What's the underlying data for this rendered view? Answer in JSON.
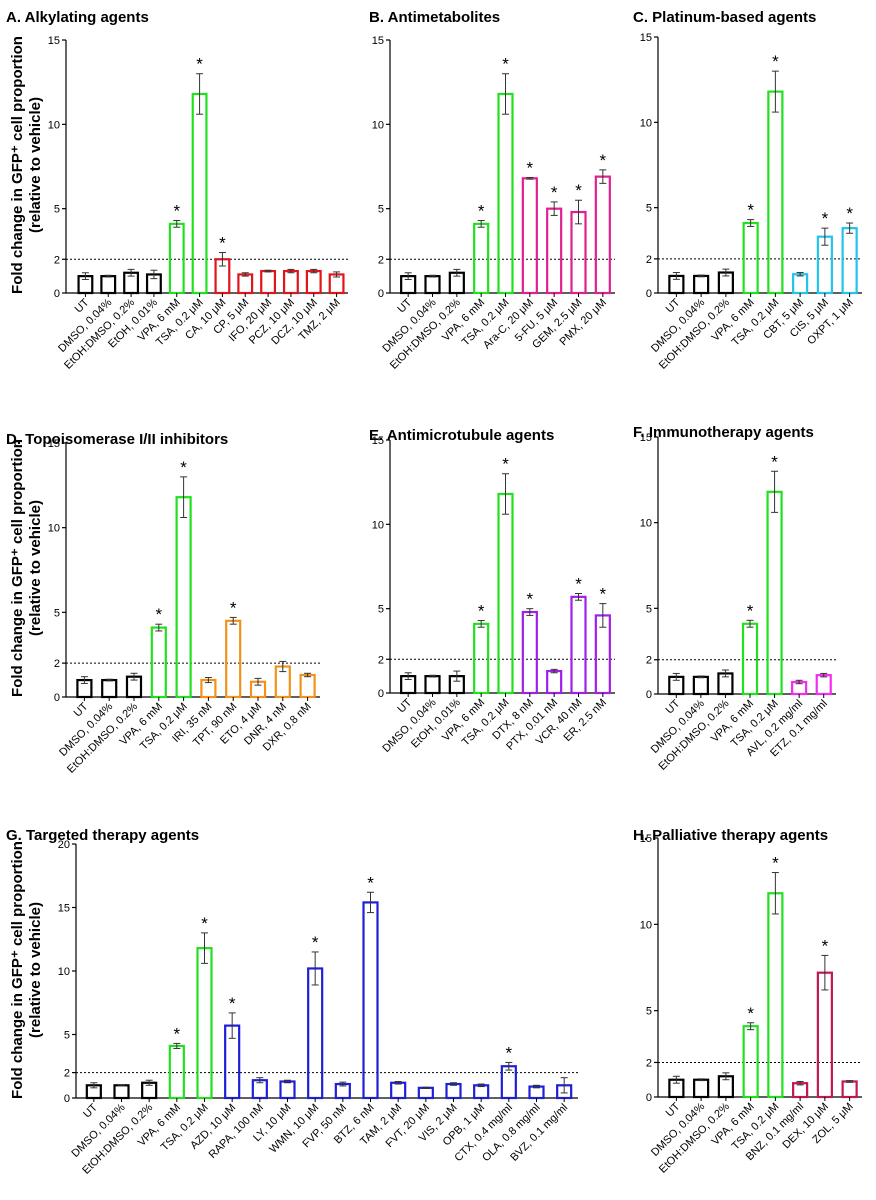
{
  "colors": {
    "black": "#000000",
    "green": "#22e020",
    "red": "#e0141b",
    "magenta": "#e0208f",
    "cyan": "#22c4ec",
    "orange": "#f2921c",
    "purple": "#a020e8",
    "pink": "#f22cf0",
    "blue": "#1f1fd6",
    "maroon": "#c01852"
  },
  "y_axis_label_line1": "Fold change in GFP⁺ cell proportion",
  "y_axis_label_line2": "(relative to vehicle)",
  "chart_data": [
    {
      "id": "A",
      "type": "bar",
      "title": "A. Alkylating agents",
      "ylim": [
        0,
        15
      ],
      "yticks": [
        0,
        2,
        5,
        10,
        15
      ],
      "reference_line": 2,
      "categories": [
        "UT",
        "DMSO, 0.04%",
        "EtOH:DMSO, 0.2%",
        "EtOH, 0.01%",
        "VPA, 6 mM",
        "TSA, 0.2 μM",
        "CA, 10 μM",
        "CP, 5 μM",
        "IFO, 20 μM",
        "PCZ, 10 μM",
        "DCZ, 10 μM",
        "TMZ, 2 μM"
      ],
      "values": [
        1.0,
        1.0,
        1.2,
        1.1,
        4.1,
        11.8,
        2.0,
        1.1,
        1.3,
        1.3,
        1.3,
        1.1
      ],
      "errors": [
        0.2,
        0.05,
        0.2,
        0.25,
        0.2,
        1.2,
        0.4,
        0.1,
        0.05,
        0.1,
        0.1,
        0.15
      ],
      "significant": [
        false,
        false,
        false,
        false,
        true,
        true,
        true,
        false,
        false,
        false,
        false,
        false
      ],
      "colors": [
        "black",
        "black",
        "black",
        "black",
        "green",
        "green",
        "red",
        "red",
        "red",
        "red",
        "red",
        "red"
      ]
    },
    {
      "id": "B",
      "type": "bar",
      "title": "B. Antimetabolites",
      "ylim": [
        0,
        15
      ],
      "yticks": [
        0,
        2,
        5,
        10,
        15
      ],
      "reference_line": 2,
      "categories": [
        "UT",
        "DMSO, 0.04%",
        "EtOH:DMSO, 0.2%",
        "VPA, 6 mM",
        "TSA, 0.2 μM",
        "Ara-C, 20 μM",
        "5-FU, 5 μM",
        "GEM, 2.5 μM",
        "PMX, 20 μM"
      ],
      "values": [
        1.0,
        1.0,
        1.2,
        4.1,
        11.8,
        6.8,
        5.0,
        4.8,
        6.9
      ],
      "errors": [
        0.2,
        0.05,
        0.2,
        0.2,
        1.2,
        0.05,
        0.4,
        0.7,
        0.4
      ],
      "significant": [
        false,
        false,
        false,
        true,
        true,
        true,
        true,
        true,
        true
      ],
      "colors": [
        "black",
        "black",
        "black",
        "green",
        "green",
        "magenta",
        "magenta",
        "magenta",
        "magenta"
      ]
    },
    {
      "id": "C",
      "type": "bar",
      "title": "C. Platinum-based agents",
      "ylim": [
        0,
        15
      ],
      "yticks": [
        0,
        2,
        5,
        10,
        15
      ],
      "reference_line": 2,
      "categories": [
        "UT",
        "DMSO, 0.04%",
        "EtOH:DMSO, 0.2%",
        "VPA, 6 mM",
        "TSA, 0.2 μM",
        "CBT, 5 μM",
        "CIS, 5 μM",
        "OXPT, 1 μM"
      ],
      "values": [
        1.0,
        1.0,
        1.2,
        4.1,
        11.8,
        1.1,
        3.3,
        3.8
      ],
      "errors": [
        0.2,
        0.05,
        0.2,
        0.2,
        1.2,
        0.1,
        0.5,
        0.3
      ],
      "significant": [
        false,
        false,
        false,
        true,
        true,
        false,
        true,
        true
      ],
      "colors": [
        "black",
        "black",
        "black",
        "green",
        "green",
        "cyan",
        "cyan",
        "cyan"
      ]
    },
    {
      "id": "D",
      "type": "bar",
      "title": "D. Topoisomerase I/II inhibitors",
      "ylim": [
        0,
        15
      ],
      "yticks": [
        0,
        2,
        5,
        10,
        15
      ],
      "reference_line": 2,
      "categories": [
        "UT",
        "DMSO, 0.04%",
        "EtOH:DMSO, 0.2%",
        "VPA, 6 mM",
        "TSA, 0.2 μM",
        "IRI, 35 nM",
        "TPT, 90 nM",
        "ETO, 4 μM",
        "DNR, 4 nM",
        "DXR, 0.8 nM"
      ],
      "values": [
        1.0,
        1.0,
        1.2,
        4.1,
        11.8,
        1.0,
        4.5,
        0.9,
        1.8,
        1.3
      ],
      "errors": [
        0.2,
        0.05,
        0.2,
        0.2,
        1.2,
        0.15,
        0.2,
        0.2,
        0.3,
        0.1
      ],
      "significant": [
        false,
        false,
        false,
        true,
        true,
        false,
        true,
        false,
        false,
        false
      ],
      "colors": [
        "black",
        "black",
        "black",
        "green",
        "green",
        "orange",
        "orange",
        "orange",
        "orange",
        "orange"
      ]
    },
    {
      "id": "E",
      "type": "bar",
      "title": "E. Antimicrotubule agents",
      "ylim": [
        0,
        15
      ],
      "yticks": [
        0,
        2,
        5,
        10,
        15
      ],
      "reference_line": 2,
      "categories": [
        "UT",
        "DMSO, 0.04%",
        "EtOH, 0.01%",
        "VPA, 6 mM",
        "TSA, 0.2 μM",
        "DTX, 8 nM",
        "PTX, 0.01 nM",
        "VCR, 40 nM",
        "ER, 2.5 nM"
      ],
      "values": [
        1.0,
        1.0,
        1.0,
        4.1,
        11.8,
        4.8,
        1.3,
        5.7,
        4.6
      ],
      "errors": [
        0.2,
        0.05,
        0.3,
        0.2,
        1.2,
        0.2,
        0.1,
        0.2,
        0.7
      ],
      "significant": [
        false,
        false,
        false,
        true,
        true,
        true,
        false,
        true,
        true
      ],
      "colors": [
        "black",
        "black",
        "black",
        "green",
        "green",
        "purple",
        "purple",
        "purple",
        "purple"
      ]
    },
    {
      "id": "F",
      "type": "bar",
      "title": "F. Immunotherapy agents",
      "ylim": [
        0,
        15
      ],
      "yticks": [
        0,
        2,
        5,
        10,
        15
      ],
      "reference_line": 2,
      "categories": [
        "UT",
        "DMSO, 0.04%",
        "EtOH:DMSO, 0.2%",
        "VPA, 6 mM",
        "TSA, 0.2 μM",
        "AVL, 0.2 mg/ml",
        "ETZ, 0.1 mg/ml"
      ],
      "values": [
        1.0,
        1.0,
        1.2,
        4.1,
        11.8,
        0.7,
        1.1
      ],
      "errors": [
        0.2,
        0.05,
        0.2,
        0.2,
        1.2,
        0.1,
        0.1
      ],
      "significant": [
        false,
        false,
        false,
        true,
        true,
        false,
        false
      ],
      "colors": [
        "black",
        "black",
        "black",
        "green",
        "green",
        "pink",
        "pink"
      ]
    },
    {
      "id": "G",
      "type": "bar",
      "title": "G. Targeted therapy agents",
      "ylim": [
        0,
        20
      ],
      "yticks": [
        0,
        2,
        5,
        10,
        15,
        20
      ],
      "reference_line": 2,
      "categories": [
        "UT",
        "DMSO, 0.04%",
        "EtOH:DMSO, 0.2%",
        "VPA, 6 mM",
        "TSA, 0.2 μM",
        "AZD, 10 μM",
        "RAPA, 100 nM",
        "LY, 10 μM",
        "WMN, 10 μM",
        "FVP, 50 nM",
        "BTZ, 6 nM",
        "TAM, 2 μM",
        "FVT, 20 μM",
        "VIS, 2 μM",
        "OPB, 1 μM",
        "CTX, 0.4 mg/ml",
        "OLA, 0.8 mg/ml",
        "BVZ, 0.1 mg/ml"
      ],
      "values": [
        1.0,
        1.0,
        1.2,
        4.1,
        11.8,
        5.7,
        1.4,
        1.3,
        10.2,
        1.1,
        15.4,
        1.2,
        0.8,
        1.1,
        1.0,
        2.5,
        0.9,
        1.0
      ],
      "errors": [
        0.2,
        0.05,
        0.2,
        0.2,
        1.2,
        1.0,
        0.2,
        0.1,
        1.3,
        0.15,
        0.8,
        0.1,
        0.05,
        0.1,
        0.1,
        0.3,
        0.1,
        0.6
      ],
      "significant": [
        false,
        false,
        false,
        true,
        true,
        true,
        false,
        false,
        true,
        false,
        true,
        false,
        false,
        false,
        false,
        true,
        false,
        false
      ],
      "colors": [
        "black",
        "black",
        "black",
        "green",
        "green",
        "blue",
        "blue",
        "blue",
        "blue",
        "blue",
        "blue",
        "blue",
        "blue",
        "blue",
        "blue",
        "blue",
        "blue",
        "blue"
      ]
    },
    {
      "id": "H",
      "type": "bar",
      "title": "H. Palliative therapy agents",
      "ylim": [
        0,
        15
      ],
      "yticks": [
        0,
        2,
        5,
        10,
        15
      ],
      "reference_line": 2,
      "categories": [
        "UT",
        "DMSO, 0.04%",
        "EtOH:DMSO, 0.2%",
        "VPA, 6 mM",
        "TSA, 0.2 μM",
        "BNZ, 0.1 mg/ml",
        "DEX, 10 μM",
        "ZOL, 5 μM"
      ],
      "values": [
        1.0,
        1.0,
        1.2,
        4.1,
        11.8,
        0.8,
        7.2,
        0.9
      ],
      "errors": [
        0.2,
        0.05,
        0.2,
        0.2,
        1.2,
        0.1,
        1.0,
        0.05
      ],
      "significant": [
        false,
        false,
        false,
        true,
        true,
        false,
        true,
        false
      ],
      "colors": [
        "black",
        "black",
        "black",
        "green",
        "green",
        "maroon",
        "maroon",
        "maroon"
      ]
    }
  ]
}
